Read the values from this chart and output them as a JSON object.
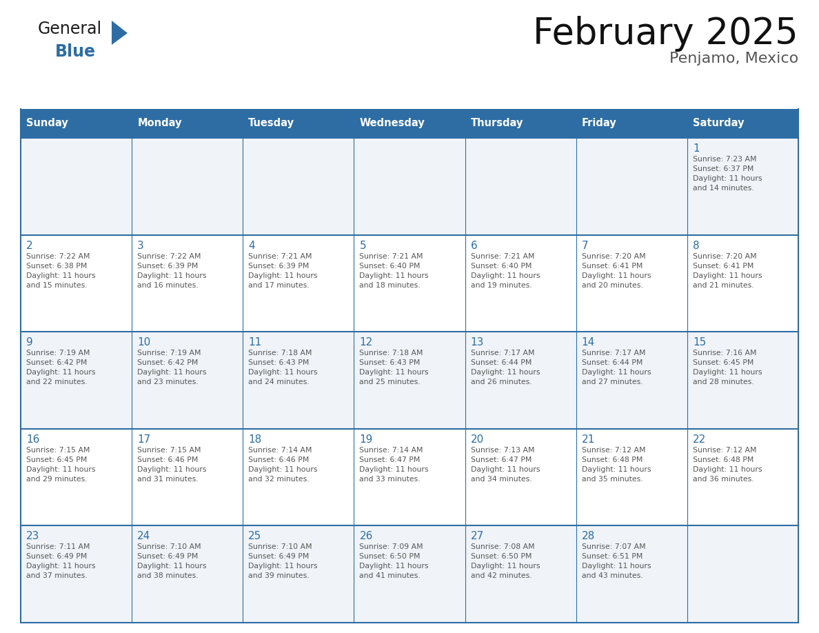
{
  "title": "February 2025",
  "subtitle": "Penjamo, Mexico",
  "days_of_week": [
    "Sunday",
    "Monday",
    "Tuesday",
    "Wednesday",
    "Thursday",
    "Friday",
    "Saturday"
  ],
  "header_bg": "#2E6DA4",
  "header_text": "#FFFFFF",
  "cell_bg_odd": "#F0F4F8",
  "cell_bg_even": "#FFFFFF",
  "grid_line_color": "#2E6DA4",
  "day_number_color": "#2E6DA4",
  "text_color": "#555555",
  "weeks": [
    [
      {
        "day": null,
        "info": null
      },
      {
        "day": null,
        "info": null
      },
      {
        "day": null,
        "info": null
      },
      {
        "day": null,
        "info": null
      },
      {
        "day": null,
        "info": null
      },
      {
        "day": null,
        "info": null
      },
      {
        "day": 1,
        "info": "Sunrise: 7:23 AM\nSunset: 6:37 PM\nDaylight: 11 hours\nand 14 minutes."
      }
    ],
    [
      {
        "day": 2,
        "info": "Sunrise: 7:22 AM\nSunset: 6:38 PM\nDaylight: 11 hours\nand 15 minutes."
      },
      {
        "day": 3,
        "info": "Sunrise: 7:22 AM\nSunset: 6:39 PM\nDaylight: 11 hours\nand 16 minutes."
      },
      {
        "day": 4,
        "info": "Sunrise: 7:21 AM\nSunset: 6:39 PM\nDaylight: 11 hours\nand 17 minutes."
      },
      {
        "day": 5,
        "info": "Sunrise: 7:21 AM\nSunset: 6:40 PM\nDaylight: 11 hours\nand 18 minutes."
      },
      {
        "day": 6,
        "info": "Sunrise: 7:21 AM\nSunset: 6:40 PM\nDaylight: 11 hours\nand 19 minutes."
      },
      {
        "day": 7,
        "info": "Sunrise: 7:20 AM\nSunset: 6:41 PM\nDaylight: 11 hours\nand 20 minutes."
      },
      {
        "day": 8,
        "info": "Sunrise: 7:20 AM\nSunset: 6:41 PM\nDaylight: 11 hours\nand 21 minutes."
      }
    ],
    [
      {
        "day": 9,
        "info": "Sunrise: 7:19 AM\nSunset: 6:42 PM\nDaylight: 11 hours\nand 22 minutes."
      },
      {
        "day": 10,
        "info": "Sunrise: 7:19 AM\nSunset: 6:42 PM\nDaylight: 11 hours\nand 23 minutes."
      },
      {
        "day": 11,
        "info": "Sunrise: 7:18 AM\nSunset: 6:43 PM\nDaylight: 11 hours\nand 24 minutes."
      },
      {
        "day": 12,
        "info": "Sunrise: 7:18 AM\nSunset: 6:43 PM\nDaylight: 11 hours\nand 25 minutes."
      },
      {
        "day": 13,
        "info": "Sunrise: 7:17 AM\nSunset: 6:44 PM\nDaylight: 11 hours\nand 26 minutes."
      },
      {
        "day": 14,
        "info": "Sunrise: 7:17 AM\nSunset: 6:44 PM\nDaylight: 11 hours\nand 27 minutes."
      },
      {
        "day": 15,
        "info": "Sunrise: 7:16 AM\nSunset: 6:45 PM\nDaylight: 11 hours\nand 28 minutes."
      }
    ],
    [
      {
        "day": 16,
        "info": "Sunrise: 7:15 AM\nSunset: 6:45 PM\nDaylight: 11 hours\nand 29 minutes."
      },
      {
        "day": 17,
        "info": "Sunrise: 7:15 AM\nSunset: 6:46 PM\nDaylight: 11 hours\nand 31 minutes."
      },
      {
        "day": 18,
        "info": "Sunrise: 7:14 AM\nSunset: 6:46 PM\nDaylight: 11 hours\nand 32 minutes."
      },
      {
        "day": 19,
        "info": "Sunrise: 7:14 AM\nSunset: 6:47 PM\nDaylight: 11 hours\nand 33 minutes."
      },
      {
        "day": 20,
        "info": "Sunrise: 7:13 AM\nSunset: 6:47 PM\nDaylight: 11 hours\nand 34 minutes."
      },
      {
        "day": 21,
        "info": "Sunrise: 7:12 AM\nSunset: 6:48 PM\nDaylight: 11 hours\nand 35 minutes."
      },
      {
        "day": 22,
        "info": "Sunrise: 7:12 AM\nSunset: 6:48 PM\nDaylight: 11 hours\nand 36 minutes."
      }
    ],
    [
      {
        "day": 23,
        "info": "Sunrise: 7:11 AM\nSunset: 6:49 PM\nDaylight: 11 hours\nand 37 minutes."
      },
      {
        "day": 24,
        "info": "Sunrise: 7:10 AM\nSunset: 6:49 PM\nDaylight: 11 hours\nand 38 minutes."
      },
      {
        "day": 25,
        "info": "Sunrise: 7:10 AM\nSunset: 6:49 PM\nDaylight: 11 hours\nand 39 minutes."
      },
      {
        "day": 26,
        "info": "Sunrise: 7:09 AM\nSunset: 6:50 PM\nDaylight: 11 hours\nand 41 minutes."
      },
      {
        "day": 27,
        "info": "Sunrise: 7:08 AM\nSunset: 6:50 PM\nDaylight: 11 hours\nand 42 minutes."
      },
      {
        "day": 28,
        "info": "Sunrise: 7:07 AM\nSunset: 6:51 PM\nDaylight: 11 hours\nand 43 minutes."
      },
      {
        "day": null,
        "info": null
      }
    ]
  ]
}
